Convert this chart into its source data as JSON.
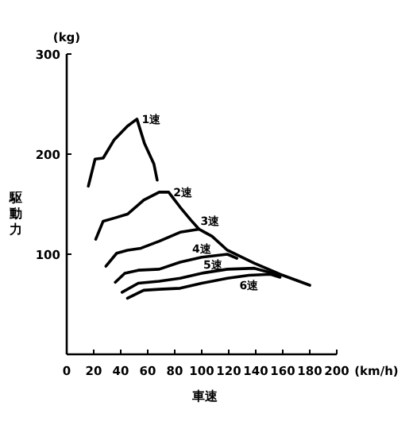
{
  "chart_data": {
    "type": "line",
    "xlabel": "車速",
    "ylabel": "駆動力",
    "xlim": [
      0,
      200
    ],
    "xticks": [
      0,
      20,
      40,
      60,
      80,
      100,
      120,
      140,
      160,
      180,
      200
    ],
    "ylim": [
      0,
      300
    ],
    "yticks": [
      100,
      200,
      300
    ],
    "series": [
      {
        "color": "#000000",
        "x": [
          16,
          21,
          27,
          35,
          45,
          52,
          57.5,
          64.6,
          67
        ],
        "values": [
          168,
          195,
          196,
          214,
          228,
          235,
          211,
          190,
          174
        ]
      },
      {
        "color": "#000000",
        "x": [
          21.5,
          27,
          35,
          45,
          57,
          68.5,
          75.5,
          84,
          92,
          98,
          107.6,
          119,
          139,
          158,
          180
        ],
        "values": [
          115,
          133,
          136,
          140,
          154,
          162,
          162,
          147,
          134,
          125,
          118,
          104,
          91,
          80,
          69
        ]
      },
      {
        "color": "#000000",
        "x": [
          29,
          37,
          45,
          55,
          68.5,
          84,
          98
        ],
        "values": [
          88,
          101,
          104,
          106,
          113,
          122,
          125
        ]
      },
      {
        "color": "#000000",
        "x": [
          36,
          43,
          53,
          68.5,
          84,
          100,
          119,
          126
        ],
        "values": [
          72,
          81,
          84,
          85,
          92,
          97,
          100,
          96
        ]
      },
      {
        "color": "#000000",
        "x": [
          41,
          53,
          68.5,
          84,
          100,
          119,
          139,
          158
        ],
        "values": [
          62,
          71,
          73,
          76,
          81,
          85,
          86,
          79
        ]
      },
      {
        "color": "#000000",
        "x": [
          45,
          57,
          68.5,
          84,
          100,
          119,
          135,
          151,
          158
        ],
        "values": [
          56,
          64,
          65,
          66,
          71,
          76,
          79,
          80,
          77
        ]
      }
    ],
    "annotations": [
      "(kg)",
      "(km/h)",
      {
        "text": "1速",
        "x": 52,
        "y": 235
      },
      {
        "text": "2速",
        "x": 75.5,
        "y": 162
      },
      {
        "text": "3速",
        "x": 98,
        "y": 125
      },
      {
        "text": "4速",
        "x": 100,
        "y": 97
      },
      {
        "text": "5速",
        "x": 100,
        "y": 81
      },
      {
        "text": "6速",
        "x": 135,
        "y": 79
      }
    ],
    "grid": false
  }
}
